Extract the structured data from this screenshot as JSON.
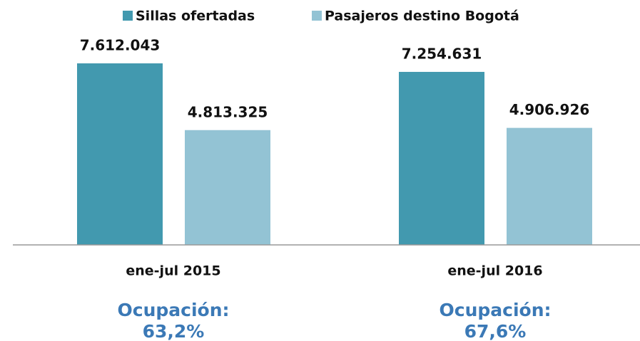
{
  "chart_data": {
    "type": "bar",
    "categories": [
      "ene-jul 2015",
      "ene-jul 2016"
    ],
    "series": [
      {
        "name": "Sillas ofertadas",
        "color": "#4299af",
        "values": [
          7612043,
          7254631
        ],
        "value_labels": [
          "7.612.043",
          "7.254.631"
        ]
      },
      {
        "name": "Pasajeros destino Bogotá",
        "color": "#93c3d4",
        "values": [
          4813325,
          4906926
        ],
        "value_labels": [
          "4.813.325",
          "4.906.926"
        ]
      }
    ],
    "annotations": [
      {
        "text": "Ocupación:",
        "value": "63,2%"
      },
      {
        "text": "Ocupación:",
        "value": "67,6%"
      }
    ]
  }
}
